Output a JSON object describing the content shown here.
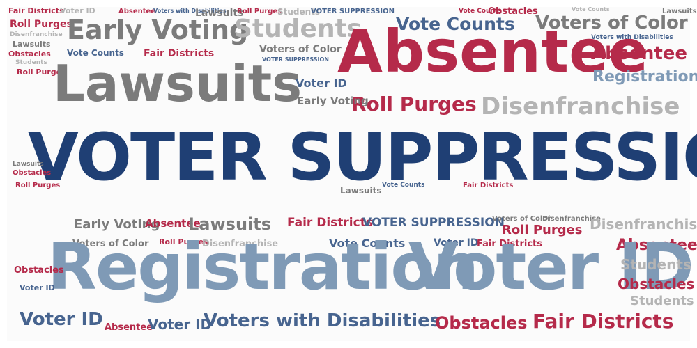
{
  "colors": {
    "navy": "#1f3f74",
    "red": "#b52a4a",
    "gray": "#7b7b7b",
    "light_gray": "#b4b4b4",
    "steel_blue": "#7f9ab6",
    "mid_blue": "#47648f"
  },
  "words": {
    "voter_suppression_main": "VOTER SUPPRESSION",
    "registration_main": "Registration",
    "voter_id_main": "Voter ID",
    "absentee_main": "Absentee",
    "lawsuits_main": "Lawsuits",
    "early_voting_top": "Early Voting",
    "students_top": "Students",
    "vote_counts_top": "Vote Counts",
    "voters_of_color_top": "Voters of Color",
    "fair_districts_tl": "Fair Districts",
    "voter_id_tl": "Voter ID",
    "absentee_tl": "Absentee",
    "voters_with_disabilities_tl": "Voters with Disabilities",
    "roll_purges_tl": "Roll Purges",
    "disenfranchise_tl": "Disenfranchise",
    "lawsuits_tl": "Lawsuits",
    "obstacles_tl": "Obstacles",
    "vote_counts_tl": "Vote Counts",
    "fair_districts_tm": "Fair Districts",
    "voters_of_color_tm": "Voters of Color",
    "voter_suppression_tm": "VOTER SUPPRESSION",
    "absentee_right": "Absentee",
    "registration_right": "Registration",
    "disenfranchise_main": "Disenfranchise",
    "roll_purges_main": "Roll Purges",
    "voter_id_mid": "Voter ID",
    "early_voting_mid": "Early Voting",
    "voter_suppression_small": "VOTER SUPPRESSION",
    "voters_with_disabilities_mid": "Voters with Disabilities",
    "registration_mid": "Registration",
    "lawsuits_mid": "Lawsuits",
    "early_voting_small": "Early Voting",
    "roll_purges_small": "Roll Purges",
    "vote_counts_small": "Vote Counts",
    "students_small": "Students",
    "fair_districts_small": "Fair Districts",
    "voter_suppression_mid": "VOTER SUPPRESSION",
    "lawsuits_low": "Lawsuits",
    "early_voting_low": "Early Voting",
    "absentee_low": "Absentee",
    "lawsuits_low2": "Lawsuits",
    "fair_districts_low": "Fair Districts",
    "roll_purges_low": "Roll Purges",
    "disenfranchise_low": "Disenfranchise",
    "voters_of_color_low": "Voters of Color",
    "roll_purges_low2": "Roll Purges",
    "disenfranchise_low2": "Disenfranchise",
    "vote_counts_low": "Vote Counts",
    "voter_id_low": "Voter ID",
    "fair_districts_low2": "Fair Districts",
    "absentee_right2": "Absentee",
    "students_right": "Students",
    "obstacles_right": "Obstacles",
    "students_right2": "Students",
    "obstacles_low": "Obstacles",
    "voter_id_bottom": "Voter ID",
    "absentee_bottom": "Absentee",
    "voter_id_bottom2": "Voter ID",
    "voters_with_disabilities_bottom": "Voters with Disabilities",
    "obstacles_bottom": "Obstacles",
    "fair_districts_bottom": "Fair Districts",
    "vote_counts_bottom": "Vote Counts",
    "obstacles_tiny": "Obstacles",
    "lawsuits_tiny": "Lawsuits"
  }
}
